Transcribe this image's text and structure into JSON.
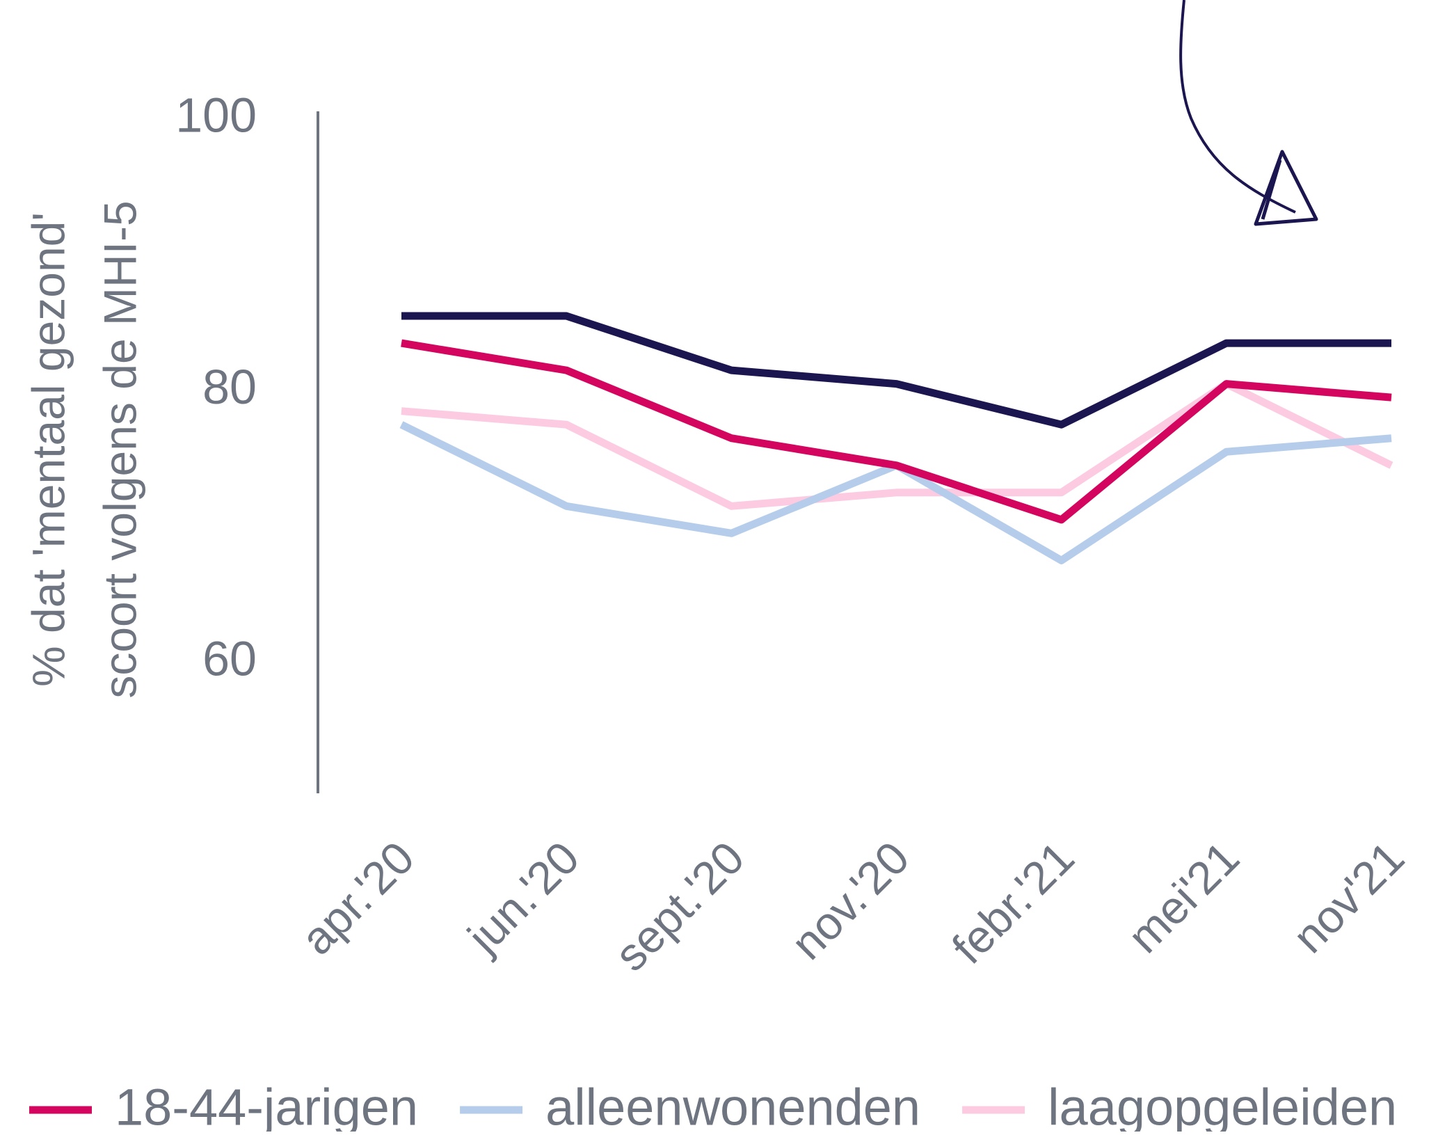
{
  "chart_data": {
    "type": "line",
    "y_label": [
      "% dat 'mentaal gezond'",
      "scoort volgens de MHI-5"
    ],
    "categories": [
      "apr.'20",
      "jun.'20",
      "sept.'20",
      "nov.'20",
      "febr.'21",
      "mei'21",
      "nov'21"
    ],
    "series": [
      {
        "color": "#1c1650",
        "values": [
          85.5,
          85.5,
          81.5,
          80.5,
          77.5,
          83.5,
          83.5
        ]
      },
      {
        "name": "18-44-jarigen",
        "color": "#d4055f",
        "values": [
          83.5,
          81.5,
          76.5,
          74.5,
          70.5,
          80.5,
          79.5
        ]
      },
      {
        "name": "alleenwonenden",
        "color": "#b5cdea",
        "values": [
          77.5,
          71.5,
          69.5,
          74.5,
          67.5,
          75.5,
          76.5
        ]
      },
      {
        "name": "laagopgeleiden",
        "color": "#fccbe2",
        "values": [
          78.5,
          77.5,
          71.5,
          72.5,
          72.5,
          80.5,
          74.5
        ]
      }
    ],
    "ylim": [
      50,
      100
    ],
    "yticks": [
      60,
      80,
      100
    ],
    "grid": false
  }
}
